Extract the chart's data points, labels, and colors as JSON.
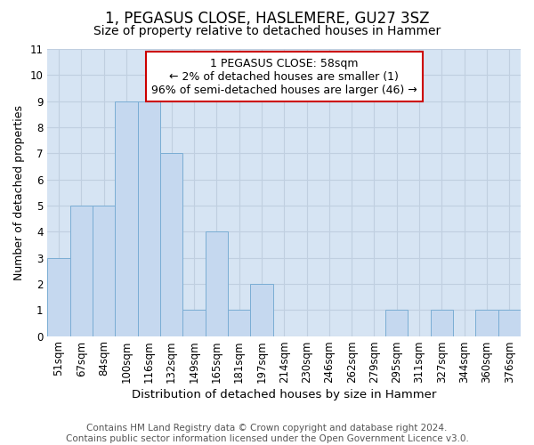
{
  "title_line1": "1, PEGASUS CLOSE, HASLEMERE, GU27 3SZ",
  "title_line2": "Size of property relative to detached houses in Hammer",
  "xlabel": "Distribution of detached houses by size in Hammer",
  "ylabel": "Number of detached properties",
  "categories": [
    "51sqm",
    "67sqm",
    "84sqm",
    "100sqm",
    "116sqm",
    "132sqm",
    "149sqm",
    "165sqm",
    "181sqm",
    "197sqm",
    "214sqm",
    "230sqm",
    "246sqm",
    "262sqm",
    "279sqm",
    "295sqm",
    "311sqm",
    "327sqm",
    "344sqm",
    "360sqm",
    "376sqm"
  ],
  "values": [
    3,
    5,
    5,
    9,
    9,
    7,
    1,
    4,
    1,
    2,
    0,
    0,
    0,
    0,
    0,
    1,
    0,
    1,
    0,
    1,
    1
  ],
  "bar_color": "#c5d8ef",
  "bar_edge_color": "#7aadd4",
  "highlight_box_text": "1 PEGASUS CLOSE: 58sqm\n← 2% of detached houses are smaller (1)\n96% of semi-detached houses are larger (46) →",
  "highlight_box_color": "#cc0000",
  "ylim": [
    0,
    11
  ],
  "yticks": [
    0,
    1,
    2,
    3,
    4,
    5,
    6,
    7,
    8,
    9,
    10,
    11
  ],
  "grid_color": "#c0cfe0",
  "background_color": "#d6e4f3",
  "footer_line1": "Contains HM Land Registry data © Crown copyright and database right 2024.",
  "footer_line2": "Contains public sector information licensed under the Open Government Licence v3.0.",
  "title_fontsize": 12,
  "subtitle_fontsize": 10,
  "axis_label_fontsize": 9,
  "tick_fontsize": 8.5,
  "footer_fontsize": 7.5,
  "annot_fontsize": 9
}
